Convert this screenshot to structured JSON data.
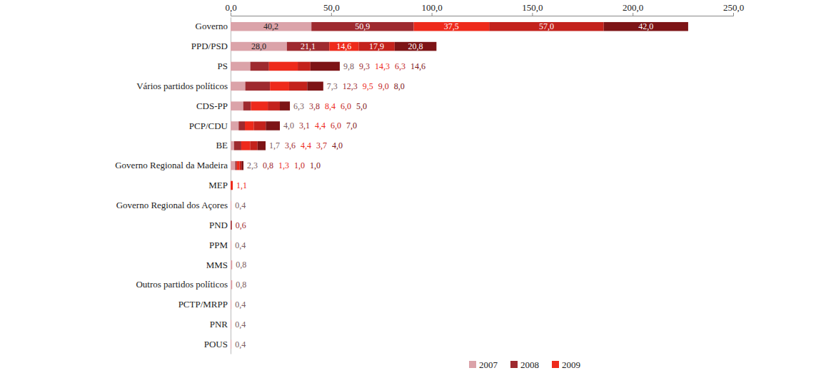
{
  "chart_data": {
    "type": "bar",
    "orientation": "horizontal",
    "stacked": true,
    "data_labels": true,
    "legend": "bottom",
    "grid": false,
    "categories": [
      "Governo",
      "PPD/PSD",
      "PS",
      "Vários partidos políticos",
      "CDS-PP",
      "PCP/CDU",
      "BE",
      "Governo Regional da Madeira",
      "MEP",
      "Governo Regional dos Açores",
      "PND",
      "PPM",
      "MMS",
      "Outros partidos políticos",
      "PCTP/MRPP",
      "PNR",
      "POUS"
    ],
    "xlim": [
      0,
      250
    ],
    "xticks": [
      {
        "value": 0,
        "label": "0,0"
      },
      {
        "value": 50,
        "label": "50,0"
      },
      {
        "value": 100,
        "label": "100,0"
      },
      {
        "value": 150,
        "label": "150,0"
      },
      {
        "value": 200,
        "label": "200,0"
      },
      {
        "value": 250,
        "label": "250,0"
      }
    ],
    "series": [
      {
        "name": "2007",
        "color": "#dba3a9",
        "values": [
          40.2,
          28.0,
          9.8,
          7.3,
          6.3,
          4.0,
          1.7,
          2.3,
          null,
          0.4,
          null,
          0.4,
          0.8,
          0.8,
          0.4,
          0.4,
          0.4
        ],
        "value_labels": [
          "40,2",
          "28,0",
          "9,8",
          "7,3",
          "6,3",
          "4,0",
          "1,7",
          "2,3",
          null,
          "0,4",
          null,
          "0,4",
          "0,8",
          "0,8",
          "0,4",
          "0,4",
          "0,4"
        ]
      },
      {
        "name": "2008",
        "color": "#9e2a2f",
        "values": [
          50.9,
          21.1,
          9.3,
          12.3,
          3.8,
          3.1,
          3.6,
          0.8,
          null,
          null,
          0.6,
          null,
          null,
          null,
          null,
          null,
          null
        ],
        "value_labels": [
          "50,9",
          "21,1",
          "9,3",
          "12,3",
          "3,8",
          "3,1",
          "3,6",
          "0,8",
          null,
          null,
          "0,6",
          null,
          null,
          null,
          null,
          null,
          null
        ]
      },
      {
        "name": "2009",
        "color": "#ee2a1b",
        "values": [
          37.5,
          14.6,
          14.3,
          9.5,
          8.4,
          4.4,
          4.4,
          1.3,
          1.1,
          null,
          null,
          null,
          null,
          null,
          null,
          null,
          null
        ],
        "value_labels": [
          "37,5",
          "14,6",
          "14,3",
          "9,5",
          "8,4",
          "4,4",
          "4,4",
          "1,3",
          "1,1",
          null,
          null,
          null,
          null,
          null,
          null,
          null,
          null
        ]
      },
      {
        "name": null,
        "color": "#c3221c",
        "values": [
          57.0,
          17.9,
          6.3,
          9.0,
          6.0,
          6.0,
          3.7,
          1.0,
          null,
          null,
          null,
          null,
          null,
          null,
          null,
          null,
          null
        ],
        "value_labels": [
          "57,0",
          "17,9",
          "6,3",
          "9,0",
          "6,0",
          "6,0",
          "3,7",
          "1,0",
          null,
          null,
          null,
          null,
          null,
          null,
          null,
          null,
          null
        ]
      },
      {
        "name": null,
        "color": "#7d1416",
        "values": [
          42.0,
          20.8,
          14.6,
          8.0,
          5.0,
          7.0,
          4.0,
          1.0,
          null,
          null,
          null,
          null,
          null,
          null,
          null,
          null,
          null
        ],
        "value_labels": [
          "42,0",
          "20,8",
          "14,6",
          "8,0",
          "5,0",
          "7,0",
          "4,0",
          "1,0",
          null,
          null,
          null,
          null,
          null,
          null,
          null,
          null,
          null
        ]
      }
    ]
  }
}
